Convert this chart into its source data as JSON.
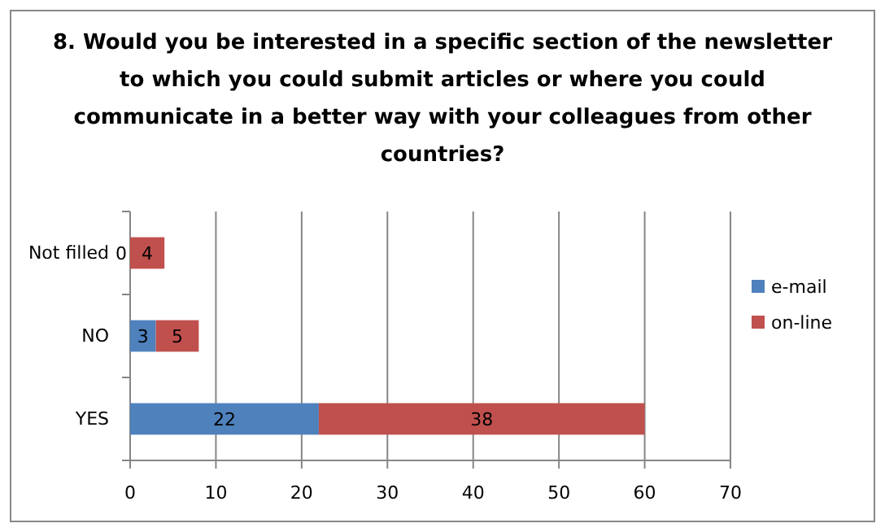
{
  "chart_data": {
    "type": "bar",
    "orientation": "horizontal",
    "stacked": true,
    "title": "8. Would you be interested in a specific section of the newsletter to which you could submit articles or where you could communicate in a better way with your colleagues from other countries?",
    "categories": [
      "Not filled",
      "NO",
      "YES"
    ],
    "series": [
      {
        "name": "e-mail",
        "color": "#4f81bd",
        "values": [
          0,
          3,
          22
        ]
      },
      {
        "name": "on-line",
        "color": "#c0504d",
        "values": [
          4,
          5,
          38
        ]
      }
    ],
    "xlim": [
      0,
      70
    ],
    "xticks": [
      0,
      10,
      20,
      30,
      40,
      50,
      60,
      70
    ],
    "grid": "x",
    "legend": "right",
    "data_labels": true
  }
}
